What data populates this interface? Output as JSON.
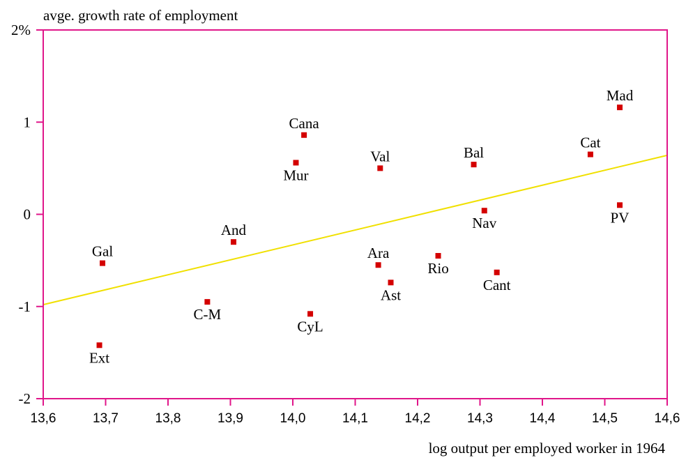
{
  "chart_data": {
    "type": "scatter",
    "ylabel": "avge. growth rate of employment",
    "xlabel": "log output per employed worker in 1964",
    "xlim": [
      13.6,
      14.6
    ],
    "ylim": [
      -2,
      2
    ],
    "x_ticks": [
      {
        "value": 13.6,
        "label": "13,6"
      },
      {
        "value": 13.7,
        "label": "13,7"
      },
      {
        "value": 13.8,
        "label": "13,8"
      },
      {
        "value": 13.9,
        "label": "13,9"
      },
      {
        "value": 14.0,
        "label": "14,0"
      },
      {
        "value": 14.1,
        "label": "14,1"
      },
      {
        "value": 14.2,
        "label": "14,2"
      },
      {
        "value": 14.3,
        "label": "14,3"
      },
      {
        "value": 14.4,
        "label": "14,4"
      },
      {
        "value": 14.5,
        "label": "14,5"
      },
      {
        "value": 14.6,
        "label": "14,6"
      }
    ],
    "y_ticks": [
      {
        "value": 2,
        "label": "2%"
      },
      {
        "value": 1,
        "label": "1"
      },
      {
        "value": 0,
        "label": "0"
      },
      {
        "value": -1,
        "label": "-1"
      },
      {
        "value": -2,
        "label": "-2"
      }
    ],
    "points": [
      {
        "label": "Ext",
        "x": 13.69,
        "y": -1.42,
        "label_pos": "below"
      },
      {
        "label": "Gal",
        "x": 13.695,
        "y": -0.53,
        "label_pos": "above"
      },
      {
        "label": "C-M",
        "x": 13.863,
        "y": -0.95,
        "label_pos": "below"
      },
      {
        "label": "And",
        "x": 13.905,
        "y": -0.3,
        "label_pos": "above"
      },
      {
        "label": "Mur",
        "x": 14.005,
        "y": 0.56,
        "label_pos": "below"
      },
      {
        "label": "Cana",
        "x": 14.018,
        "y": 0.86,
        "label_pos": "above"
      },
      {
        "label": "CyL",
        "x": 14.028,
        "y": -1.08,
        "label_pos": "below"
      },
      {
        "label": "Val",
        "x": 14.14,
        "y": 0.5,
        "label_pos": "above"
      },
      {
        "label": "Ara",
        "x": 14.137,
        "y": -0.55,
        "label_pos": "above"
      },
      {
        "label": "Ast",
        "x": 14.157,
        "y": -0.74,
        "label_pos": "below"
      },
      {
        "label": "Rio",
        "x": 14.233,
        "y": -0.45,
        "label_pos": "below"
      },
      {
        "label": "Bal",
        "x": 14.29,
        "y": 0.54,
        "label_pos": "above"
      },
      {
        "label": "Nav",
        "x": 14.307,
        "y": 0.04,
        "label_pos": "below"
      },
      {
        "label": "Cant",
        "x": 14.327,
        "y": -0.63,
        "label_pos": "below"
      },
      {
        "label": "Cat",
        "x": 14.477,
        "y": 0.65,
        "label_pos": "above"
      },
      {
        "label": "Mad",
        "x": 14.524,
        "y": 1.16,
        "label_pos": "above"
      },
      {
        "label": "PV",
        "x": 14.524,
        "y": 0.1,
        "label_pos": "below"
      }
    ],
    "fit_line": {
      "x": [
        13.6,
        14.6
      ],
      "y": [
        -0.98,
        0.64
      ]
    },
    "grid": false,
    "legend": "none",
    "colors": {
      "frame": "#e0168a",
      "points": "#d40000",
      "fit_line": "#f0e000",
      "text": "#000000"
    }
  }
}
